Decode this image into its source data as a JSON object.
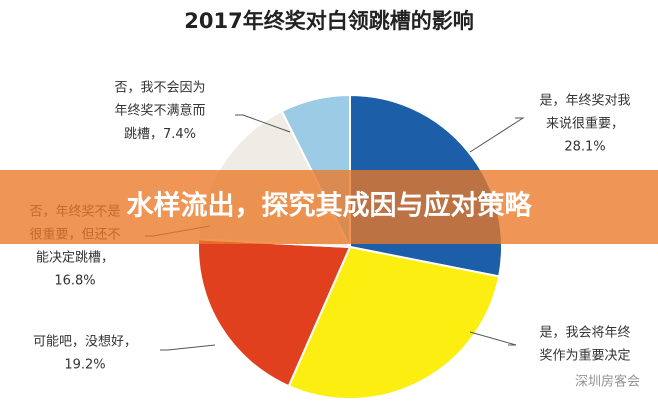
{
  "chart_data": {
    "type": "pie",
    "title": "2017年终奖对白领跳槽的影响",
    "labels": [
      [
        "是，年终奖对我",
        "来说很重要，"
      ],
      [
        "是，我会将年终",
        "奖作为重要决定"
      ],
      [
        "可能吧，没想好，"
      ],
      [
        "否，年终奖不是",
        "很重要，但还不",
        "能决定跳槽，"
      ],
      [
        "否，我不会因为",
        "年终奖不满意而",
        "跳槽，"
      ]
    ],
    "values": [
      28.1,
      28.5,
      19.2,
      16.8,
      7.4
    ],
    "value_labels": [
      "28.1%",
      null,
      "19.2%",
      "16.8%",
      "7.4%"
    ],
    "colors": [
      "#1d5ea8",
      "#fbee10",
      "#e0401e",
      "#efebe5",
      "#9ccbe6"
    ]
  },
  "banner": "水样流出，探究其成因与应对策略",
  "watermark": "深圳房客会"
}
